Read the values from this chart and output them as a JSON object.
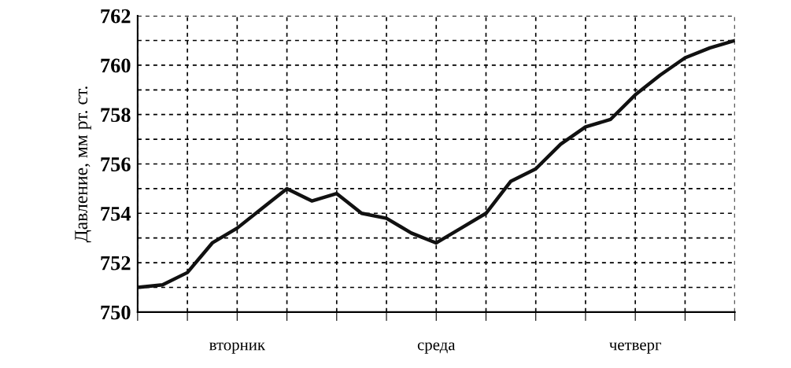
{
  "chart_data": {
    "type": "line",
    "ylabel": "Давление, мм рт. ст.",
    "categories": [
      null,
      null,
      null,
      null,
      "вторник",
      null,
      null,
      null,
      null,
      null,
      null,
      null,
      "среда",
      null,
      null,
      null,
      null,
      null,
      null,
      null,
      "четверг",
      null,
      null,
      null,
      null
    ],
    "ylim": [
      750,
      762
    ],
    "yticks": [
      750,
      {
        "value": 751,
        "label": null
      },
      752,
      {
        "value": 753,
        "label": null
      },
      754,
      {
        "value": 755,
        "label": null
      },
      756,
      {
        "value": 757,
        "label": null
      },
      758,
      {
        "value": 759,
        "label": null
      },
      760,
      {
        "value": 761,
        "label": null
      },
      762
    ],
    "grid": true,
    "line_style": "solid",
    "marker": "none",
    "series": [
      {
        "color": "#111111",
        "values": [
          751.0,
          751.1,
          751.6,
          752.8,
          753.4,
          754.2,
          755.0,
          754.5,
          754.8,
          754.0,
          753.8,
          753.2,
          752.8,
          753.4,
          754.0,
          755.3,
          755.8,
          756.8,
          757.5,
          757.8,
          758.8,
          759.6,
          760.3,
          760.7,
          761.0
        ]
      }
    ]
  }
}
